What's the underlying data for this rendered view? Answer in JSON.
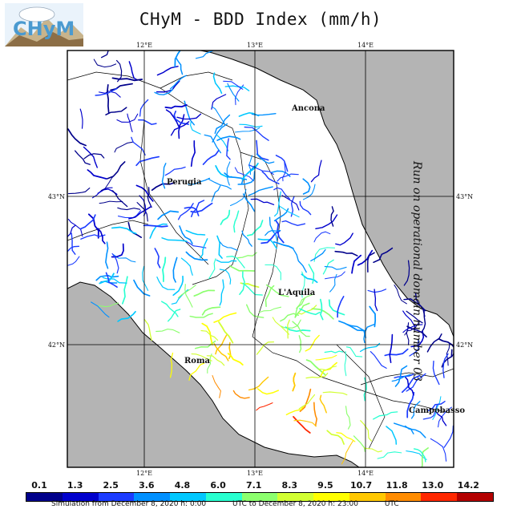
{
  "header": {
    "title": "CHyM - BDD Index (mm/h)"
  },
  "logo": {
    "text": "CHyM"
  },
  "side_label": "Run on operational domain number 03",
  "map": {
    "lon_ticks": [
      "12°E",
      "13°E",
      "14°E"
    ],
    "lat_ticks": [
      "43°N",
      "42°N"
    ],
    "cities": [
      "Ancona",
      "Perugia",
      "L'Aquila",
      "Roma",
      "Campobasso"
    ],
    "colors": {
      "land": "#ffffff",
      "sea": "#b4b4b4",
      "border": "#000000"
    }
  },
  "legend": {
    "values": [
      "0.1",
      "1.3",
      "2.5",
      "3.6",
      "4.8",
      "6.0",
      "7.1",
      "8.3",
      "9.5",
      "10.7",
      "11.8",
      "13.0",
      "14.2"
    ],
    "colors": [
      "#00008b",
      "#0000cd",
      "#1c3cff",
      "#0090ff",
      "#00c8ff",
      "#28ffd0",
      "#8cff6e",
      "#d2ff32",
      "#ffff00",
      "#ffc800",
      "#ff8c00",
      "#ff2800",
      "#b40000"
    ]
  },
  "footer": {
    "sim_from": "Simulation from December 8, 2020 h: 0:00",
    "utc_to": "UTC to December 8, 2020 h: 23:00",
    "utc": "UTC"
  }
}
